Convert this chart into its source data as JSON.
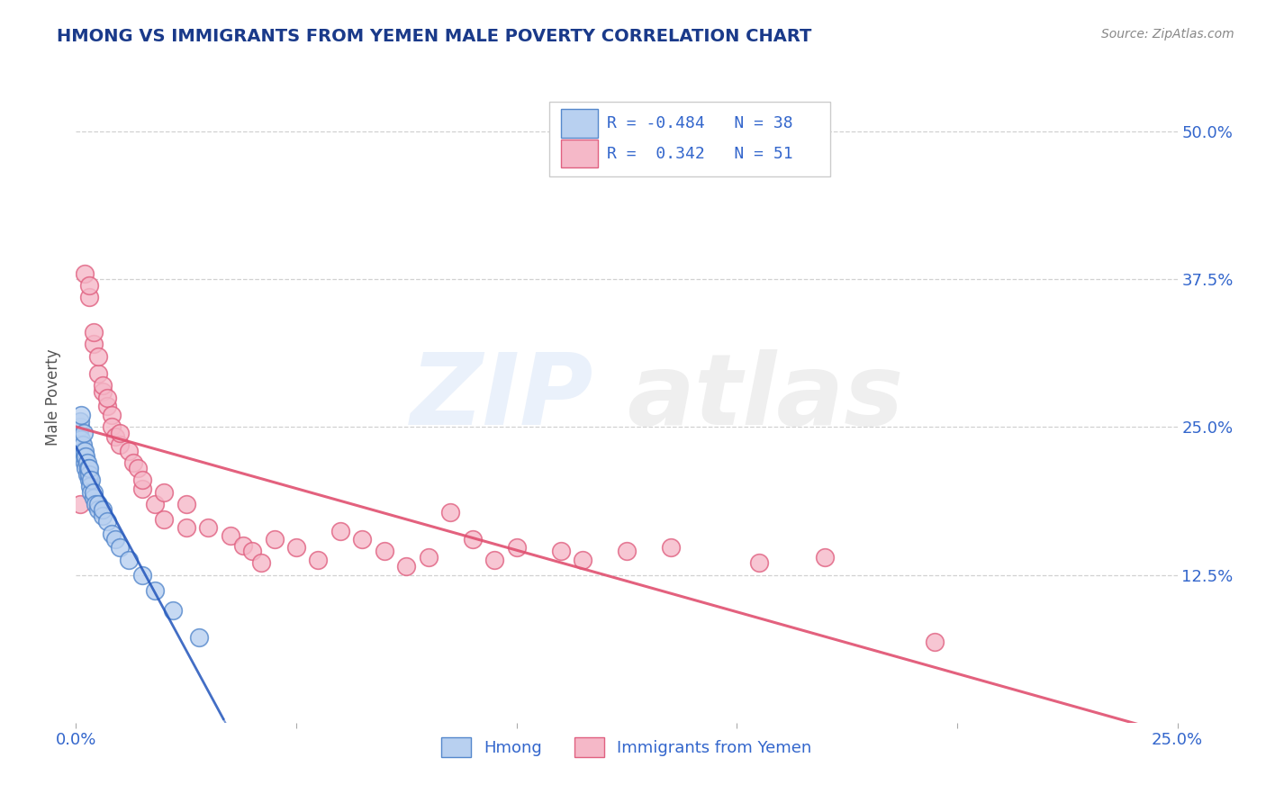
{
  "title": "HMONG VS IMMIGRANTS FROM YEMEN MALE POVERTY CORRELATION CHART",
  "source": "Source: ZipAtlas.com",
  "ylabel": "Male Poverty",
  "xlim": [
    0.0,
    0.25
  ],
  "ylim": [
    0.0,
    0.55
  ],
  "xticks": [
    0.0,
    0.25
  ],
  "xtick_labels": [
    "0.0%",
    "25.0%"
  ],
  "ytick_vals": [
    0.125,
    0.25,
    0.375,
    0.5
  ],
  "ytick_labels": [
    "12.5%",
    "25.0%",
    "37.5%",
    "50.0%"
  ],
  "legend_R1": "-0.484",
  "legend_N1": "38",
  "legend_R2": "0.342",
  "legend_N2": "51",
  "hmong_color": "#b8d0f0",
  "hmong_edge_color": "#5588cc",
  "yemen_color": "#f5b8c8",
  "yemen_edge_color": "#e06080",
  "trendline_hmong_color": "#2255bb",
  "trendline_yemen_color": "#e05070",
  "background_color": "#ffffff",
  "grid_color": "#cccccc",
  "title_color": "#1a3a8a",
  "axis_label_color": "#555555",
  "tick_color": "#3366cc",
  "source_color": "#888888",
  "hmong_x": [
    0.0008,
    0.001,
    0.001,
    0.0012,
    0.0012,
    0.0015,
    0.0015,
    0.0018,
    0.002,
    0.002,
    0.002,
    0.0022,
    0.0022,
    0.0025,
    0.0025,
    0.0028,
    0.003,
    0.003,
    0.003,
    0.0032,
    0.0035,
    0.0035,
    0.004,
    0.004,
    0.0045,
    0.005,
    0.005,
    0.006,
    0.006,
    0.007,
    0.008,
    0.009,
    0.01,
    0.012,
    0.015,
    0.018,
    0.022,
    0.028
  ],
  "hmong_y": [
    0.245,
    0.25,
    0.255,
    0.24,
    0.26,
    0.23,
    0.235,
    0.245,
    0.22,
    0.225,
    0.23,
    0.215,
    0.225,
    0.21,
    0.22,
    0.215,
    0.205,
    0.21,
    0.215,
    0.2,
    0.195,
    0.205,
    0.19,
    0.195,
    0.185,
    0.18,
    0.185,
    0.175,
    0.18,
    0.17,
    0.16,
    0.155,
    0.148,
    0.138,
    0.125,
    0.112,
    0.095,
    0.072
  ],
  "yemen_x": [
    0.001,
    0.002,
    0.003,
    0.003,
    0.004,
    0.004,
    0.005,
    0.005,
    0.006,
    0.006,
    0.007,
    0.007,
    0.008,
    0.008,
    0.009,
    0.01,
    0.01,
    0.012,
    0.013,
    0.014,
    0.015,
    0.015,
    0.018,
    0.02,
    0.02,
    0.025,
    0.025,
    0.03,
    0.035,
    0.038,
    0.04,
    0.042,
    0.045,
    0.05,
    0.055,
    0.06,
    0.065,
    0.07,
    0.075,
    0.08,
    0.085,
    0.09,
    0.095,
    0.1,
    0.11,
    0.115,
    0.125,
    0.135,
    0.155,
    0.17,
    0.195
  ],
  "yemen_y": [
    0.185,
    0.38,
    0.36,
    0.37,
    0.32,
    0.33,
    0.295,
    0.31,
    0.28,
    0.285,
    0.268,
    0.275,
    0.26,
    0.25,
    0.242,
    0.235,
    0.245,
    0.23,
    0.22,
    0.215,
    0.198,
    0.205,
    0.185,
    0.195,
    0.172,
    0.185,
    0.165,
    0.165,
    0.158,
    0.15,
    0.145,
    0.135,
    0.155,
    0.148,
    0.138,
    0.162,
    0.155,
    0.145,
    0.132,
    0.14,
    0.178,
    0.155,
    0.138,
    0.148,
    0.145,
    0.138,
    0.145,
    0.148,
    0.135,
    0.14,
    0.068
  ]
}
